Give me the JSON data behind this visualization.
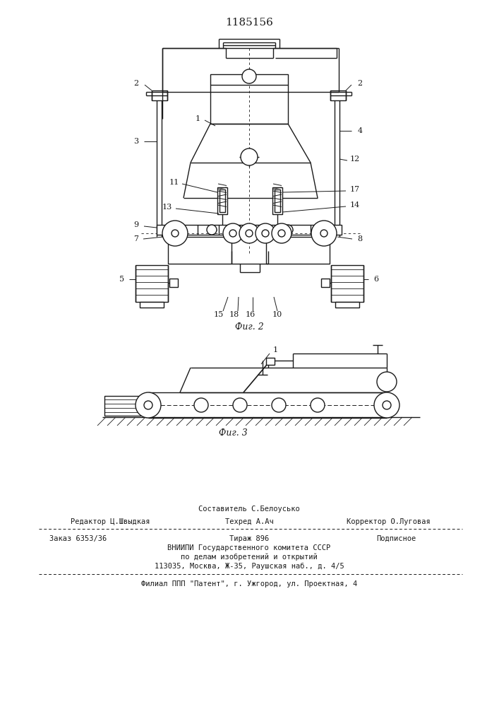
{
  "title": "1185156",
  "fig2_caption": "Фиг. 2",
  "fig3_caption": "Фиг. 3",
  "footer_line1_left": "Редактор Ц.Швыдкая",
  "footer_line1_center": "Составитель С.Белоусько",
  "footer_line1_right": "Корректор О.Луговая",
  "footer_line2_center": "Техред А.Ач",
  "footer_line3_left": "Заказ 6353/36",
  "footer_line3_center1": "Тираж 896",
  "footer_line3_center2": "Подписное",
  "footer_line4": "ВНИИПИ Государственного комитета СССР",
  "footer_line5": "по делам изобретений и открытий",
  "footer_line6": "113035, Москва, Ж-35, Раушская наб., д. 4/5",
  "footer_line7": "Филиал ППП \"Патент\", г. Ужгород, ул. Проектная, 4",
  "bg_color": "#ffffff",
  "line_color": "#1a1a1a"
}
